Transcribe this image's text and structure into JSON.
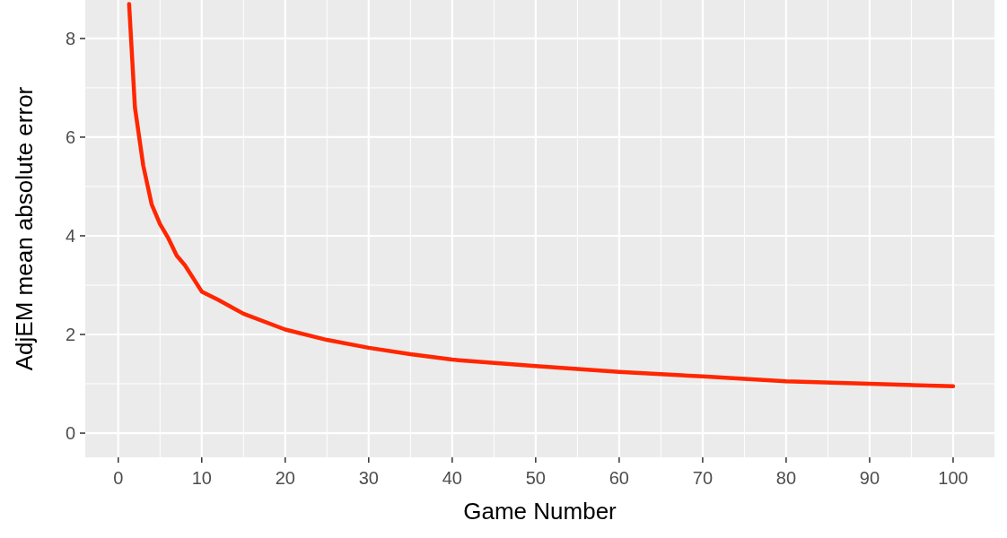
{
  "chart_data": {
    "type": "line",
    "xlabel": "Game Number",
    "ylabel": "AdjEM mean absolute error",
    "xlim": [
      -3.95,
      104.95
    ],
    "ylim": [
      -0.49,
      8.78
    ],
    "xticks": [
      0,
      10,
      20,
      30,
      40,
      50,
      60,
      70,
      80,
      90,
      100
    ],
    "yticks": [
      0,
      2,
      4,
      6,
      8
    ],
    "grid": true,
    "series": [
      {
        "color": "#ff2600",
        "x": [
          1.3,
          2,
          3,
          4,
          5,
          6,
          7,
          8,
          10,
          12,
          15,
          20,
          25,
          30,
          35,
          40,
          50,
          60,
          70,
          80,
          90,
          100
        ],
        "values": [
          8.7,
          6.6,
          5.42,
          4.64,
          4.24,
          3.95,
          3.6,
          3.4,
          2.87,
          2.7,
          2.42,
          2.1,
          1.89,
          1.73,
          1.6,
          1.49,
          1.36,
          1.24,
          1.15,
          1.05,
          1.0,
          0.95
        ]
      }
    ]
  }
}
